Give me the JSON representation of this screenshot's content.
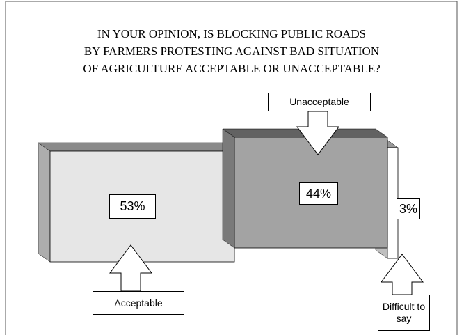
{
  "chart_data": {
    "type": "proportion",
    "title": [
      "IN YOUR OPINION, IS BLOCKING PUBLIC ROADS",
      "BY FARMERS PROTESTING AGAINST BAD SITUATION",
      "OF AGRICULTURE ACCEPTABLE OR UNACCEPTABLE?"
    ],
    "categories": [
      "Acceptable",
      "Unacceptable",
      "Difficult to say"
    ],
    "values": [
      53,
      44,
      3
    ],
    "value_labels": [
      "53%",
      "44%",
      "3%"
    ],
    "colors": [
      "#e6e6e6",
      "#a3a3a3",
      "#ffffff"
    ]
  }
}
